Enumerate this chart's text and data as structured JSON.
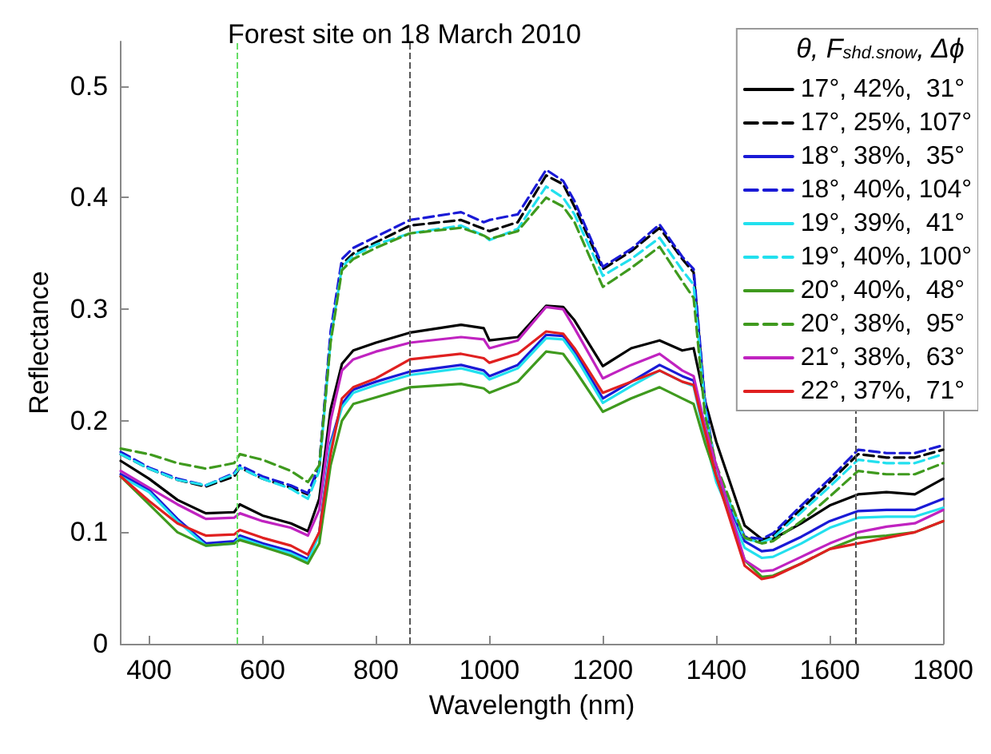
{
  "chart_data": {
    "type": "line",
    "title": "Forest site on 18 March 2010",
    "xlabel": "Wavelength (nm)",
    "ylabel": "Reflectance",
    "legend_title": "θ, F$_{shd.snow}$, Δϕ",
    "legend": "top right",
    "marker": "none",
    "grid": false,
    "xlim": [
      350,
      1800
    ],
    "xticks": [
      400,
      600,
      800,
      1000,
      1200,
      1400,
      1600,
      1800
    ],
    "ylim": [
      0,
      0.54
    ],
    "yticks": [
      0,
      0.1,
      0.2,
      0.3,
      0.4,
      0.5
    ],
    "x": [
      350,
      400,
      450,
      500,
      550,
      560,
      600,
      650,
      680,
      700,
      720,
      740,
      760,
      800,
      860,
      950,
      990,
      1000,
      1050,
      1100,
      1130,
      1150,
      1200,
      1250,
      1300,
      1340,
      1360,
      1380,
      1400,
      1450,
      1480,
      1500,
      1550,
      1600,
      1650,
      1700,
      1750,
      1800
    ],
    "ref_lines": [
      {
        "axis": "x",
        "value": 555,
        "color": "#66dd66",
        "line_style": "dashed"
      },
      {
        "axis": "x",
        "value": 860,
        "color": "#555555",
        "line_style": "dashed"
      },
      {
        "axis": "x",
        "value": 1645,
        "color": "#555555",
        "line_style": "dashed"
      }
    ],
    "series": [
      {
        "name": "17°, 42%,  31°",
        "color": "#000000",
        "line_style": "solid",
        "values": [
          0.164,
          0.148,
          0.129,
          0.117,
          0.118,
          0.125,
          0.115,
          0.108,
          0.101,
          0.13,
          0.21,
          0.251,
          0.263,
          0.27,
          0.279,
          0.286,
          0.283,
          0.272,
          0.275,
          0.303,
          0.302,
          0.29,
          0.249,
          0.265,
          0.272,
          0.263,
          0.265,
          0.218,
          0.181,
          0.106,
          0.094,
          0.094,
          0.108,
          0.124,
          0.134,
          0.136,
          0.134,
          0.148
        ]
      },
      {
        "name": "17°, 25%, 107°",
        "color": "#000000",
        "line_style": "dashed",
        "values": [
          0.17,
          0.157,
          0.147,
          0.141,
          0.15,
          0.158,
          0.148,
          0.14,
          0.134,
          0.158,
          0.275,
          0.34,
          0.35,
          0.36,
          0.375,
          0.38,
          0.372,
          0.37,
          0.378,
          0.42,
          0.412,
          0.392,
          0.336,
          0.352,
          0.373,
          0.345,
          0.333,
          0.215,
          0.15,
          0.095,
          0.092,
          0.097,
          0.121,
          0.145,
          0.17,
          0.167,
          0.167,
          0.174
        ]
      },
      {
        "name": "18°, 38%,  35°",
        "color": "#1a1ad6",
        "line_style": "solid",
        "values": [
          0.152,
          0.138,
          0.112,
          0.09,
          0.092,
          0.097,
          0.09,
          0.083,
          0.076,
          0.1,
          0.18,
          0.215,
          0.228,
          0.235,
          0.244,
          0.25,
          0.245,
          0.24,
          0.25,
          0.277,
          0.276,
          0.262,
          0.22,
          0.235,
          0.25,
          0.24,
          0.236,
          0.19,
          0.15,
          0.092,
          0.083,
          0.084,
          0.096,
          0.11,
          0.119,
          0.12,
          0.12,
          0.13
        ]
      },
      {
        "name": "18°, 40%, 104°",
        "color": "#1a1ad6",
        "line_style": "dashed",
        "values": [
          0.172,
          0.158,
          0.148,
          0.142,
          0.153,
          0.16,
          0.15,
          0.142,
          0.135,
          0.16,
          0.28,
          0.345,
          0.355,
          0.365,
          0.38,
          0.387,
          0.378,
          0.38,
          0.385,
          0.425,
          0.415,
          0.397,
          0.338,
          0.354,
          0.376,
          0.347,
          0.336,
          0.218,
          0.153,
          0.096,
          0.094,
          0.099,
          0.124,
          0.148,
          0.174,
          0.171,
          0.171,
          0.178
        ]
      },
      {
        "name": "19°, 39%,  41°",
        "color": "#22e0ee",
        "line_style": "solid",
        "values": [
          0.15,
          0.136,
          0.11,
          0.088,
          0.09,
          0.095,
          0.088,
          0.081,
          0.074,
          0.098,
          0.177,
          0.212,
          0.225,
          0.232,
          0.241,
          0.247,
          0.242,
          0.237,
          0.247,
          0.274,
          0.273,
          0.259,
          0.216,
          0.231,
          0.245,
          0.235,
          0.231,
          0.185,
          0.145,
          0.086,
          0.077,
          0.078,
          0.09,
          0.104,
          0.113,
          0.114,
          0.114,
          0.122
        ]
      },
      {
        "name": "19°, 40%, 100°",
        "color": "#22e0ee",
        "line_style": "dashed",
        "values": [
          0.17,
          0.157,
          0.147,
          0.142,
          0.152,
          0.158,
          0.148,
          0.139,
          0.13,
          0.155,
          0.272,
          0.338,
          0.348,
          0.358,
          0.368,
          0.375,
          0.366,
          0.362,
          0.372,
          0.41,
          0.4,
          0.385,
          0.33,
          0.345,
          0.364,
          0.335,
          0.322,
          0.212,
          0.155,
          0.094,
          0.091,
          0.095,
          0.118,
          0.141,
          0.165,
          0.162,
          0.162,
          0.17
        ]
      },
      {
        "name": "20°, 40%,  48°",
        "color": "#3f9a1e",
        "line_style": "solid",
        "values": [
          0.15,
          0.125,
          0.1,
          0.088,
          0.09,
          0.093,
          0.087,
          0.079,
          0.072,
          0.09,
          0.16,
          0.2,
          0.215,
          0.221,
          0.23,
          0.233,
          0.229,
          0.225,
          0.235,
          0.262,
          0.26,
          0.246,
          0.208,
          0.22,
          0.23,
          0.22,
          0.215,
          0.18,
          0.15,
          0.075,
          0.06,
          0.061,
          0.072,
          0.085,
          0.095,
          0.097,
          0.1,
          0.11
        ]
      },
      {
        "name": "20°, 38%,  95°",
        "color": "#3f9a1e",
        "line_style": "dashed",
        "values": [
          0.175,
          0.17,
          0.162,
          0.157,
          0.162,
          0.17,
          0.165,
          0.155,
          0.145,
          0.16,
          0.27,
          0.335,
          0.345,
          0.355,
          0.368,
          0.373,
          0.366,
          0.363,
          0.37,
          0.4,
          0.392,
          0.378,
          0.32,
          0.337,
          0.356,
          0.325,
          0.31,
          0.205,
          0.16,
          0.095,
          0.09,
          0.092,
          0.11,
          0.132,
          0.155,
          0.152,
          0.152,
          0.162
        ]
      },
      {
        "name": "21°, 38%,  63°",
        "color": "#c023c0",
        "line_style": "solid",
        "values": [
          0.155,
          0.14,
          0.125,
          0.112,
          0.113,
          0.117,
          0.11,
          0.104,
          0.097,
          0.12,
          0.2,
          0.245,
          0.255,
          0.262,
          0.27,
          0.275,
          0.273,
          0.265,
          0.272,
          0.302,
          0.3,
          0.283,
          0.238,
          0.25,
          0.26,
          0.245,
          0.24,
          0.195,
          0.16,
          0.075,
          0.065,
          0.066,
          0.078,
          0.09,
          0.1,
          0.105,
          0.108,
          0.12
        ]
      },
      {
        "name": "22°, 37%,  71°",
        "color": "#e02020",
        "line_style": "solid",
        "values": [
          0.15,
          0.128,
          0.108,
          0.097,
          0.098,
          0.102,
          0.095,
          0.088,
          0.08,
          0.1,
          0.17,
          0.22,
          0.23,
          0.238,
          0.255,
          0.26,
          0.256,
          0.252,
          0.26,
          0.28,
          0.278,
          0.265,
          0.225,
          0.235,
          0.245,
          0.235,
          0.232,
          0.19,
          0.15,
          0.07,
          0.058,
          0.06,
          0.072,
          0.085,
          0.09,
          0.095,
          0.1,
          0.11
        ]
      }
    ]
  }
}
